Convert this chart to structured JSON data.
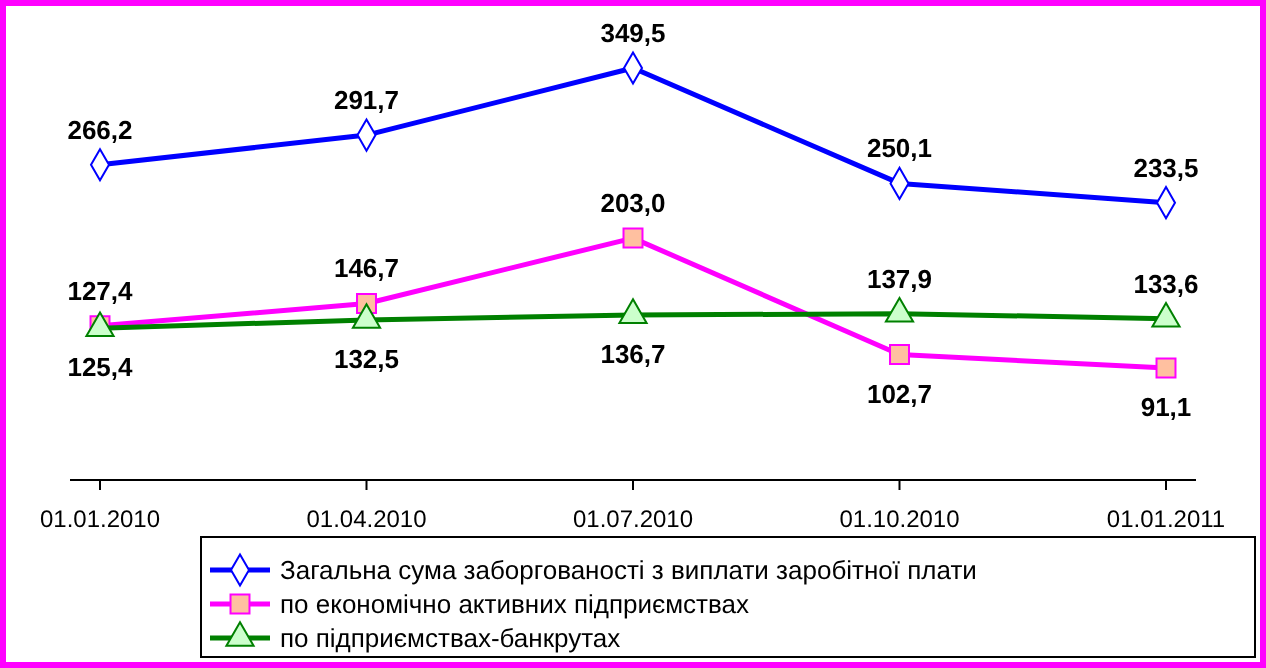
{
  "chart_data": {
    "type": "line",
    "categories": [
      "01.01.2010",
      "01.04.2010",
      "01.07.2010",
      "01.10.2010",
      "01.01.2011"
    ],
    "legend": "bottom",
    "grid": false,
    "series": [
      {
        "name": "Загальна сума заборгованості з виплати заробітної плати",
        "color": "#0000ff",
        "marker": "diamond",
        "values": [
          266.2,
          291.7,
          349.5,
          250.1,
          233.5
        ],
        "value_labels": [
          "266,2",
          "291,7",
          "349,5",
          "250,1",
          "233,5"
        ]
      },
      {
        "name": "по економічно активних підприємствах",
        "color": "#ff00ff",
        "marker": "square",
        "values": [
          127.4,
          146.7,
          203.0,
          102.7,
          91.1
        ],
        "value_labels": [
          "127,4",
          "146,7",
          "203,0",
          "102,7",
          "91,1"
        ]
      },
      {
        "name": "по підприємствах-банкрутах",
        "color": "#008000",
        "marker": "triangle",
        "values": [
          125.4,
          132.5,
          136.7,
          137.9,
          133.6
        ],
        "value_labels": [
          "125,4",
          "132,5",
          "136,7",
          "137,9",
          "133,6"
        ]
      }
    ]
  }
}
